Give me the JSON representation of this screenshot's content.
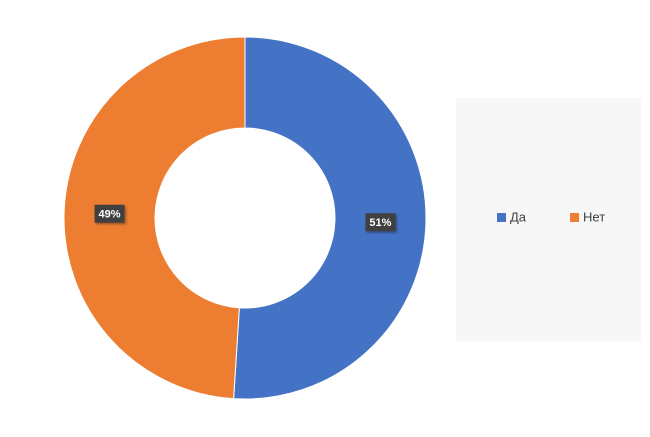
{
  "chart_data": {
    "type": "donut",
    "categories": [
      "Да",
      "Нет"
    ],
    "values": [
      51,
      49
    ],
    "value_labels": [
      "51%",
      "49%"
    ],
    "colors": [
      "#4472c4",
      "#ed7d31"
    ],
    "legend": "right"
  }
}
